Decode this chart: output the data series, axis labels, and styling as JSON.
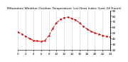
{
  "title": "Milwaukee Weather Outdoor Temperature (vs) Heat Index (Last 24 Hours)",
  "background_color": "#ffffff",
  "plot_background": "#ffffff",
  "line_color": "#cc0000",
  "line_style": "--",
  "line_width": 0.7,
  "marker": "s",
  "marker_size": 1.2,
  "grid_color": "#bbbbbb",
  "grid_style": "--",
  "grid_linewidth": 0.4,
  "x_ticks": [
    0,
    2,
    4,
    6,
    8,
    10,
    12,
    14,
    16,
    18,
    20,
    22,
    24
  ],
  "x_labels": [
    "0",
    "2",
    "4",
    "6",
    "8",
    "10",
    "12",
    "14",
    "16",
    "18",
    "20",
    "22",
    "24"
  ],
  "ylim": [
    20,
    90
  ],
  "y_ticks": [
    20,
    30,
    40,
    50,
    60,
    70,
    80,
    90
  ],
  "y_labels": [
    "20",
    "30",
    "40",
    "50",
    "60",
    "70",
    "80",
    "90"
  ],
  "xlim": [
    0,
    24
  ],
  "title_fontsize": 3.2,
  "tick_fontsize": 3.0,
  "data_x": [
    0,
    1,
    2,
    3,
    4,
    5,
    6,
    7,
    8,
    9,
    10,
    11,
    12,
    13,
    14,
    15,
    16,
    17,
    18,
    19,
    20,
    21,
    22,
    23,
    24
  ],
  "data_y": [
    52,
    48,
    44,
    40,
    37,
    36,
    35,
    37,
    45,
    58,
    68,
    74,
    77,
    78,
    76,
    73,
    68,
    62,
    57,
    53,
    50,
    48,
    46,
    44,
    43
  ]
}
